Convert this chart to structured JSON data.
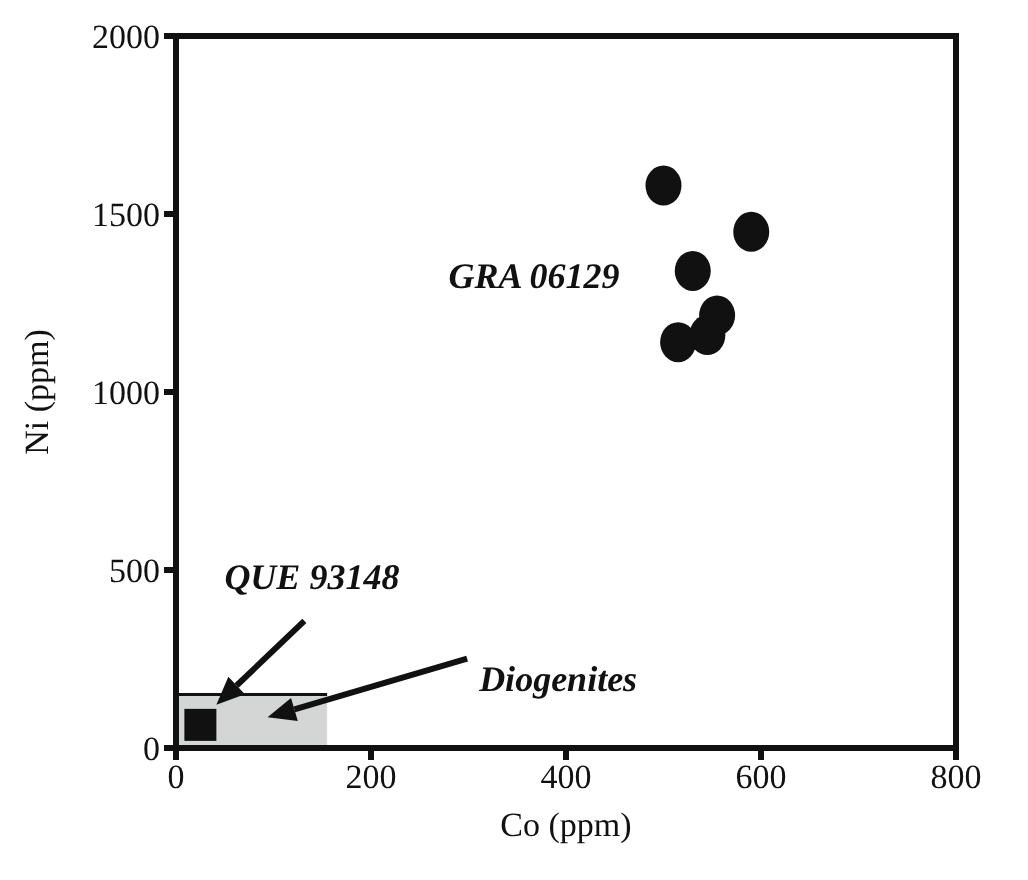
{
  "chart_data": {
    "type": "scatter",
    "xlabel": "Co (ppm)",
    "ylabel": "Ni (ppm)",
    "xlim": [
      0,
      800
    ],
    "xticks": [
      0,
      200,
      400,
      600,
      800
    ],
    "ylim": [
      0,
      2000
    ],
    "yticks": [
      0,
      500,
      1000,
      1500,
      2000
    ],
    "grid": false,
    "series": [
      {
        "type": "area",
        "name": "Diogenites",
        "color": "#d4d6d6",
        "x": [
          0,
          155
        ],
        "values": [
          150,
          150
        ]
      },
      {
        "marker": "square",
        "color": "#111111",
        "x": [
          25
        ],
        "values": [
          65
        ]
      },
      {
        "name": "GRA 06129",
        "marker": "circle",
        "color": "#111111",
        "x": [
          500,
          590,
          530,
          555,
          545,
          515
        ],
        "values": [
          1580,
          1450,
          1340,
          1215,
          1160,
          1140
        ]
      }
    ],
    "annotations": [
      "QUE 93148"
    ]
  }
}
